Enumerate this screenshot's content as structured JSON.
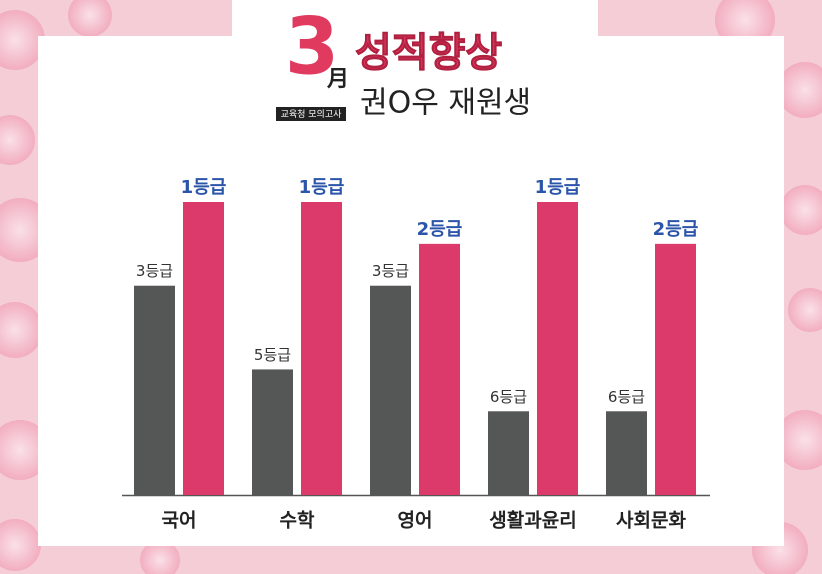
{
  "chart_data": {
    "type": "grouped-bar",
    "badge": "3",
    "badge_suffix": "月",
    "badge_caption": "교육청 모의고사",
    "title": "성적향상",
    "subtitle": "권O우 재원생",
    "categories": [
      "국어",
      "수학",
      "영어",
      "생활과윤리",
      "사회문화"
    ],
    "series": [
      {
        "color": "#555757",
        "label_color": "#333333",
        "values": [
          3,
          5,
          3,
          6,
          6
        ],
        "value_labels": [
          "3등급",
          "5등급",
          "3등급",
          "6등급",
          "6등급"
        ]
      },
      {
        "color": "#dc3a6a",
        "label_color": "#2b55a8",
        "values": [
          1,
          1,
          2,
          1,
          2
        ],
        "value_labels": [
          "1등급",
          "1등급",
          "2등급",
          "1등급",
          "2등급"
        ]
      }
    ],
    "ylim": [
      8,
      1
    ]
  }
}
